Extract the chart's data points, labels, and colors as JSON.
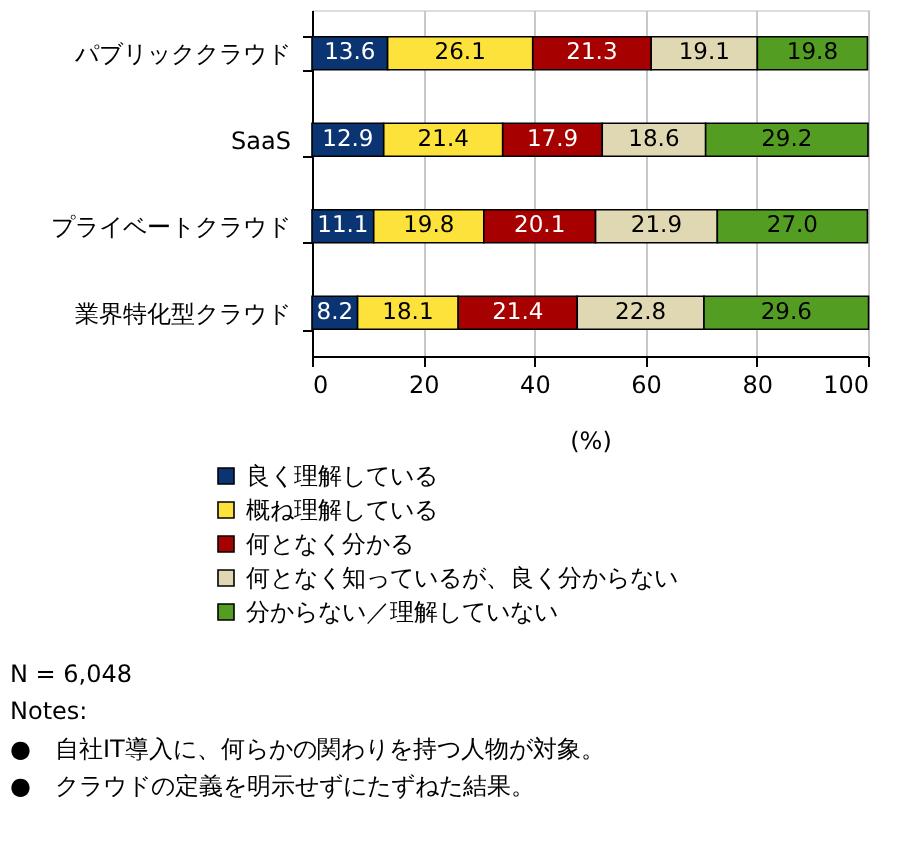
{
  "chart_data": {
    "type": "bar",
    "orientation": "horizontal",
    "stacked": true,
    "categories": [
      "パブリッククラウド",
      "SaaS",
      "プライベートクラウド",
      "業界特化型クラウド"
    ],
    "series": [
      {
        "name": "良く理解している",
        "color": "#0b3572",
        "values": [
          13.6,
          12.9,
          11.1,
          8.2
        ],
        "value_labels": [
          "13.6",
          "12.9",
          "11.1",
          "8.2"
        ]
      },
      {
        "name": "概ね理解している",
        "color": "#fde23c",
        "values": [
          26.1,
          21.4,
          19.8,
          18.1
        ],
        "value_labels": [
          "26.1",
          "21.4",
          "19.8",
          "18.1"
        ]
      },
      {
        "name": "何となく分かる",
        "color": "#a60000",
        "values": [
          21.3,
          17.9,
          20.1,
          21.4
        ],
        "value_labels": [
          "21.3",
          "17.9",
          "20.1",
          "21.4"
        ]
      },
      {
        "name": "何となく知っているが、良く分からない",
        "color": "#e0d8b2",
        "values": [
          19.1,
          18.6,
          21.9,
          22.8
        ],
        "value_labels": [
          "19.1",
          "18.6",
          "21.9",
          "22.8"
        ]
      },
      {
        "name": "分からない／理解していない",
        "color": "#539d22",
        "values": [
          19.8,
          29.2,
          27.0,
          29.6
        ],
        "value_labels": [
          "19.8",
          "29.2",
          "27.0",
          "29.6"
        ]
      }
    ],
    "xlabel": "(%)",
    "xlim": [
      0,
      100
    ],
    "xticks": [
      0,
      20,
      40,
      60,
      80,
      100
    ],
    "grid": "x",
    "legend": "bottom",
    "annotations": [
      "N = 6,048",
      "Notes:",
      "●　自社IT導入に、何らかの関わりを持つ人物が対象。",
      "●　クラウドの定義を明示せずにたずねた結果。"
    ]
  }
}
